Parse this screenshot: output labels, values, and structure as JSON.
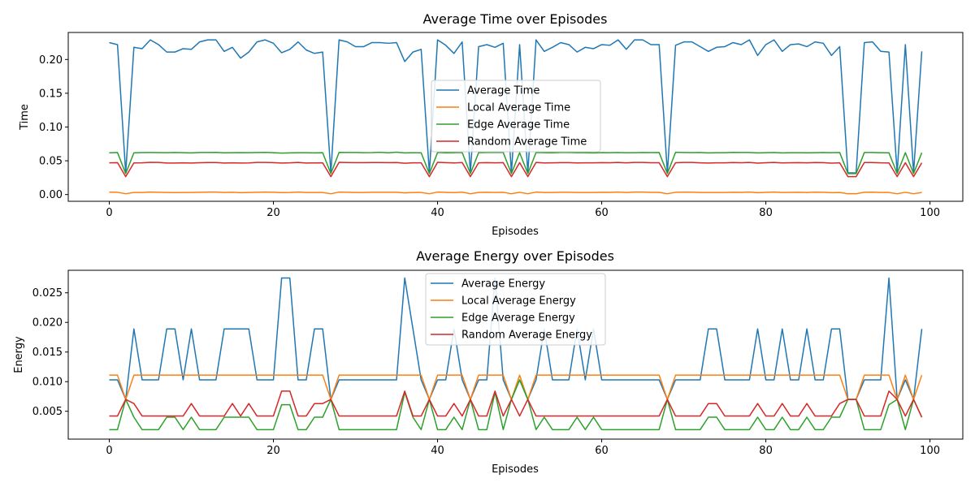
{
  "chart_data": [
    {
      "type": "line",
      "title": "Average Time over Episodes",
      "xlabel": "Episodes",
      "ylabel": "Time",
      "xlim": [
        -5,
        104
      ],
      "ylim": [
        -0.01,
        0.24
      ],
      "xticks": [
        0,
        20,
        40,
        60,
        80,
        100
      ],
      "yticks": [
        0.0,
        0.05,
        0.1,
        0.15,
        0.2
      ],
      "ytick_labels": [
        "0.00",
        "0.05",
        "0.10",
        "0.15",
        "0.20"
      ],
      "xtick_labels": [
        "0",
        "20",
        "40",
        "60",
        "80",
        "100"
      ],
      "legend_position": "center",
      "grid": false,
      "x_start": 0,
      "series": [
        {
          "name": "Average Time",
          "color": "#1f77b4",
          "values": [
            0.225,
            0.222,
            0.032,
            0.218,
            0.216,
            0.229,
            0.222,
            0.211,
            0.211,
            0.216,
            0.215,
            0.226,
            0.229,
            0.229,
            0.212,
            0.218,
            0.202,
            0.211,
            0.226,
            0.229,
            0.224,
            0.21,
            0.215,
            0.226,
            0.214,
            0.209,
            0.211,
            0.032,
            0.229,
            0.226,
            0.219,
            0.219,
            0.225,
            0.225,
            0.224,
            0.225,
            0.197,
            0.211,
            0.215,
            0.032,
            0.229,
            0.221,
            0.209,
            0.226,
            0.032,
            0.219,
            0.222,
            0.218,
            0.224,
            0.032,
            0.222,
            0.032,
            0.229,
            0.212,
            0.218,
            0.225,
            0.222,
            0.211,
            0.218,
            0.216,
            0.222,
            0.221,
            0.229,
            0.215,
            0.229,
            0.229,
            0.222,
            0.222,
            0.032,
            0.221,
            0.226,
            0.226,
            0.219,
            0.212,
            0.218,
            0.219,
            0.225,
            0.222,
            0.229,
            0.206,
            0.222,
            0.229,
            0.212,
            0.222,
            0.223,
            0.219,
            0.226,
            0.224,
            0.206,
            0.219,
            0.032,
            0.032,
            0.225,
            0.226,
            0.212,
            0.211,
            0.032,
            0.222,
            0.032,
            0.212
          ]
        },
        {
          "name": "Local Average Time",
          "color": "#ff7f0e",
          "values": [
            0.0035,
            0.0033,
            0.0012,
            0.003,
            0.0031,
            0.0036,
            0.0033,
            0.003,
            0.0029,
            0.0031,
            0.003,
            0.0033,
            0.0036,
            0.0036,
            0.0031,
            0.0033,
            0.0028,
            0.003,
            0.0033,
            0.0036,
            0.0033,
            0.0029,
            0.003,
            0.0036,
            0.0031,
            0.003,
            0.003,
            0.0012,
            0.0036,
            0.0034,
            0.0031,
            0.0031,
            0.0033,
            0.0033,
            0.0033,
            0.0034,
            0.0025,
            0.003,
            0.003,
            0.0012,
            0.0036,
            0.0032,
            0.0029,
            0.0035,
            0.0012,
            0.0031,
            0.0033,
            0.003,
            0.0033,
            0.0012,
            0.0033,
            0.0012,
            0.0036,
            0.0031,
            0.0031,
            0.0033,
            0.0033,
            0.003,
            0.0031,
            0.0031,
            0.0033,
            0.0032,
            0.0036,
            0.0031,
            0.0036,
            0.0036,
            0.0032,
            0.0032,
            0.0012,
            0.0033,
            0.0035,
            0.0035,
            0.0031,
            0.003,
            0.0031,
            0.0031,
            0.0034,
            0.0032,
            0.0036,
            0.0028,
            0.0032,
            0.0036,
            0.003,
            0.0032,
            0.0033,
            0.0031,
            0.0035,
            0.0033,
            0.0028,
            0.0031,
            0.0012,
            0.0012,
            0.0034,
            0.0035,
            0.0031,
            0.003,
            0.0012,
            0.0033,
            0.0012,
            0.0031
          ]
        },
        {
          "name": "Edge Average Time",
          "color": "#2ca02c",
          "values": [
            0.0618,
            0.0622,
            0.031,
            0.0618,
            0.0621,
            0.0622,
            0.0621,
            0.062,
            0.0622,
            0.062,
            0.0616,
            0.0622,
            0.0622,
            0.0624,
            0.0618,
            0.062,
            0.0621,
            0.0619,
            0.0622,
            0.0624,
            0.062,
            0.0613,
            0.0616,
            0.0619,
            0.0619,
            0.0616,
            0.062,
            0.031,
            0.0624,
            0.0623,
            0.0623,
            0.062,
            0.0621,
            0.0626,
            0.0618,
            0.0627,
            0.0616,
            0.062,
            0.0618,
            0.031,
            0.0622,
            0.0618,
            0.0619,
            0.0622,
            0.031,
            0.0619,
            0.0622,
            0.0622,
            0.0622,
            0.031,
            0.062,
            0.031,
            0.0623,
            0.062,
            0.0618,
            0.0623,
            0.0622,
            0.0619,
            0.062,
            0.0616,
            0.0621,
            0.062,
            0.0622,
            0.062,
            0.062,
            0.0622,
            0.0621,
            0.0622,
            0.031,
            0.0626,
            0.0623,
            0.0621,
            0.0622,
            0.0616,
            0.062,
            0.062,
            0.0624,
            0.0623,
            0.0622,
            0.0617,
            0.0619,
            0.0622,
            0.0617,
            0.0619,
            0.062,
            0.0618,
            0.062,
            0.0622,
            0.062,
            0.0622,
            0.031,
            0.031,
            0.0622,
            0.0622,
            0.062,
            0.0618,
            0.031,
            0.062,
            0.031,
            0.062
          ]
        },
        {
          "name": "Random Average Time",
          "color": "#d62728",
          "values": [
            0.047,
            0.0472,
            0.0265,
            0.0468,
            0.0469,
            0.0477,
            0.0476,
            0.0466,
            0.0467,
            0.0469,
            0.0466,
            0.0471,
            0.0474,
            0.0474,
            0.0467,
            0.047,
            0.0467,
            0.0468,
            0.0475,
            0.0476,
            0.0472,
            0.0467,
            0.0469,
            0.0475,
            0.0467,
            0.0468,
            0.0469,
            0.0265,
            0.0477,
            0.0474,
            0.0472,
            0.0473,
            0.0474,
            0.0474,
            0.0472,
            0.0474,
            0.0464,
            0.0469,
            0.0469,
            0.0265,
            0.0477,
            0.0473,
            0.0468,
            0.0474,
            0.0265,
            0.0469,
            0.0472,
            0.0469,
            0.0472,
            0.0265,
            0.0472,
            0.0265,
            0.0475,
            0.0468,
            0.047,
            0.0473,
            0.0473,
            0.0468,
            0.047,
            0.0469,
            0.0472,
            0.0471,
            0.0475,
            0.0469,
            0.0475,
            0.0475,
            0.0471,
            0.0471,
            0.0265,
            0.0471,
            0.0475,
            0.0475,
            0.047,
            0.0467,
            0.0469,
            0.047,
            0.0474,
            0.0471,
            0.0475,
            0.0465,
            0.0471,
            0.0475,
            0.0468,
            0.0471,
            0.0472,
            0.047,
            0.0474,
            0.0472,
            0.0465,
            0.047,
            0.0265,
            0.0265,
            0.0474,
            0.0474,
            0.0469,
            0.0468,
            0.0265,
            0.0471,
            0.0265,
            0.0469
          ]
        }
      ]
    },
    {
      "type": "line",
      "title": "Average Energy over Episodes",
      "xlabel": "Episodes",
      "ylabel": "Energy",
      "xlim": [
        -5,
        104
      ],
      "ylim": [
        0.0003,
        0.0288
      ],
      "xticks": [
        0,
        20,
        40,
        60,
        80,
        100
      ],
      "yticks": [
        0.005,
        0.01,
        0.015,
        0.02,
        0.025
      ],
      "ytick_labels": [
        "0.005",
        "0.010",
        "0.015",
        "0.020",
        "0.025"
      ],
      "xtick_labels": [
        "0",
        "20",
        "40",
        "60",
        "80",
        "100"
      ],
      "legend_position": "upper center",
      "grid": false,
      "x_start": 0,
      "series": [
        {
          "name": "Average Energy",
          "color": "#1f77b4",
          "values": [
            0.0103,
            0.0103,
            0.007,
            0.0189,
            0.0103,
            0.0103,
            0.0103,
            0.0189,
            0.0189,
            0.0103,
            0.0189,
            0.0103,
            0.0103,
            0.0103,
            0.0189,
            0.0189,
            0.0189,
            0.0189,
            0.0103,
            0.0103,
            0.0103,
            0.0275,
            0.0275,
            0.0103,
            0.0103,
            0.0189,
            0.0189,
            0.007,
            0.0103,
            0.0103,
            0.0103,
            0.0103,
            0.0103,
            0.0103,
            0.0103,
            0.0103,
            0.0275,
            0.0189,
            0.0103,
            0.007,
            0.0103,
            0.0103,
            0.0189,
            0.0103,
            0.007,
            0.0103,
            0.0103,
            0.0275,
            0.0103,
            0.007,
            0.0103,
            0.007,
            0.0103,
            0.0189,
            0.0103,
            0.0103,
            0.0103,
            0.0189,
            0.0103,
            0.0189,
            0.0103,
            0.0103,
            0.0103,
            0.0103,
            0.0103,
            0.0103,
            0.0103,
            0.0103,
            0.007,
            0.0103,
            0.0103,
            0.0103,
            0.0103,
            0.0189,
            0.0189,
            0.0103,
            0.0103,
            0.0103,
            0.0103,
            0.0189,
            0.0103,
            0.0103,
            0.0189,
            0.0103,
            0.0103,
            0.0189,
            0.0103,
            0.0103,
            0.0189,
            0.0189,
            0.007,
            0.007,
            0.0103,
            0.0103,
            0.0103,
            0.0275,
            0.007,
            0.0103,
            0.007,
            0.0189
          ]
        },
        {
          "name": "Local Average Energy",
          "color": "#ff7f0e",
          "values": [
            0.0111,
            0.0111,
            0.007,
            0.0111,
            0.0111,
            0.0111,
            0.0111,
            0.0111,
            0.0111,
            0.0111,
            0.0111,
            0.0111,
            0.0111,
            0.0111,
            0.0111,
            0.0111,
            0.0111,
            0.0111,
            0.0111,
            0.0111,
            0.0111,
            0.0111,
            0.0111,
            0.0111,
            0.0111,
            0.0111,
            0.0111,
            0.007,
            0.0111,
            0.0111,
            0.0111,
            0.0111,
            0.0111,
            0.0111,
            0.0111,
            0.0111,
            0.0111,
            0.0111,
            0.0111,
            0.007,
            0.0111,
            0.0111,
            0.0111,
            0.0111,
            0.007,
            0.0111,
            0.0111,
            0.0111,
            0.0111,
            0.007,
            0.0111,
            0.007,
            0.0111,
            0.0111,
            0.0111,
            0.0111,
            0.0111,
            0.0111,
            0.0111,
            0.0111,
            0.0111,
            0.0111,
            0.0111,
            0.0111,
            0.0111,
            0.0111,
            0.0111,
            0.0111,
            0.007,
            0.0111,
            0.0111,
            0.0111,
            0.0111,
            0.0111,
            0.0111,
            0.0111,
            0.0111,
            0.0111,
            0.0111,
            0.0111,
            0.0111,
            0.0111,
            0.0111,
            0.0111,
            0.0111,
            0.0111,
            0.0111,
            0.0111,
            0.0111,
            0.0111,
            0.007,
            0.007,
            0.0111,
            0.0111,
            0.0111,
            0.0111,
            0.007,
            0.0111,
            0.007,
            0.0111
          ]
        },
        {
          "name": "Edge Average Energy",
          "color": "#2ca02c",
          "values": [
            0.0019,
            0.0019,
            0.007,
            0.004,
            0.0019,
            0.0019,
            0.0019,
            0.004,
            0.004,
            0.0019,
            0.004,
            0.0019,
            0.0019,
            0.0019,
            0.004,
            0.004,
            0.004,
            0.004,
            0.0019,
            0.0019,
            0.0019,
            0.0061,
            0.0061,
            0.0019,
            0.0019,
            0.004,
            0.004,
            0.007,
            0.0019,
            0.0019,
            0.0019,
            0.0019,
            0.0019,
            0.0019,
            0.0019,
            0.0019,
            0.0082,
            0.004,
            0.0019,
            0.007,
            0.0019,
            0.0019,
            0.004,
            0.0019,
            0.007,
            0.0019,
            0.0019,
            0.0082,
            0.0019,
            0.007,
            0.0103,
            0.007,
            0.0019,
            0.004,
            0.0019,
            0.0019,
            0.0019,
            0.004,
            0.0019,
            0.004,
            0.0019,
            0.0019,
            0.0019,
            0.0019,
            0.0019,
            0.0019,
            0.0019,
            0.0019,
            0.007,
            0.0019,
            0.0019,
            0.0019,
            0.0019,
            0.004,
            0.004,
            0.0019,
            0.0019,
            0.0019,
            0.0019,
            0.004,
            0.0019,
            0.0019,
            0.004,
            0.0019,
            0.0019,
            0.004,
            0.0019,
            0.0019,
            0.004,
            0.004,
            0.007,
            0.007,
            0.0019,
            0.0019,
            0.0019,
            0.0061,
            0.007,
            0.0019,
            0.007,
            0.004
          ]
        },
        {
          "name": "Random Average Energy",
          "color": "#d62728",
          "values": [
            0.0042,
            0.0042,
            0.007,
            0.0063,
            0.0042,
            0.0042,
            0.0042,
            0.0042,
            0.0042,
            0.0042,
            0.0063,
            0.0042,
            0.0042,
            0.0042,
            0.0042,
            0.0063,
            0.0042,
            0.0063,
            0.0042,
            0.0042,
            0.0042,
            0.0084,
            0.0084,
            0.0042,
            0.0042,
            0.0063,
            0.0063,
            0.007,
            0.0042,
            0.0042,
            0.0042,
            0.0042,
            0.0042,
            0.0042,
            0.0042,
            0.0042,
            0.0084,
            0.0042,
            0.0042,
            0.007,
            0.0042,
            0.0042,
            0.0063,
            0.0042,
            0.007,
            0.0042,
            0.0042,
            0.0084,
            0.0042,
            0.007,
            0.0042,
            0.007,
            0.0042,
            0.0042,
            0.0042,
            0.0042,
            0.0042,
            0.0042,
            0.0042,
            0.0042,
            0.0042,
            0.0042,
            0.0042,
            0.0042,
            0.0042,
            0.0042,
            0.0042,
            0.0042,
            0.007,
            0.0042,
            0.0042,
            0.0042,
            0.0042,
            0.0063,
            0.0063,
            0.0042,
            0.0042,
            0.0042,
            0.0042,
            0.0063,
            0.0042,
            0.0042,
            0.0063,
            0.0042,
            0.0042,
            0.0063,
            0.0042,
            0.0042,
            0.0042,
            0.0063,
            0.007,
            0.007,
            0.0042,
            0.0042,
            0.0042,
            0.0084,
            0.007,
            0.0042,
            0.007,
            0.004
          ]
        }
      ]
    }
  ]
}
